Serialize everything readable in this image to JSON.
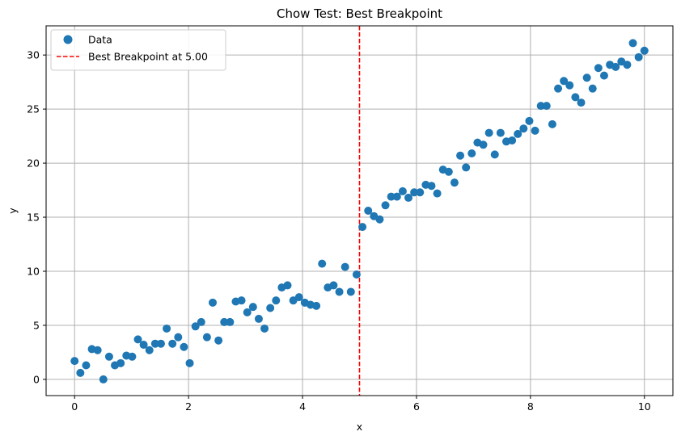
{
  "chart_data": {
    "type": "scatter",
    "title": "Chow Test: Best Breakpoint",
    "xlabel": "x",
    "ylabel": "y",
    "xlim": [
      -0.5,
      10.5
    ],
    "ylim": [
      -1.5,
      32.7
    ],
    "xticks": [
      0,
      2,
      4,
      6,
      8,
      10
    ],
    "yticks": [
      0,
      5,
      10,
      15,
      20,
      25,
      30
    ],
    "grid": true,
    "legend_position": "top-left",
    "series": [
      {
        "name": "Data",
        "color": "#1f77b4",
        "x": [
          0.0,
          0.101,
          0.202,
          0.303,
          0.404,
          0.505,
          0.606,
          0.707,
          0.808,
          0.909,
          1.01,
          1.111,
          1.212,
          1.313,
          1.414,
          1.515,
          1.616,
          1.717,
          1.818,
          1.919,
          2.02,
          2.121,
          2.222,
          2.323,
          2.424,
          2.525,
          2.626,
          2.727,
          2.828,
          2.929,
          3.03,
          3.131,
          3.232,
          3.333,
          3.434,
          3.535,
          3.636,
          3.737,
          3.838,
          3.939,
          4.04,
          4.141,
          4.242,
          4.343,
          4.444,
          4.545,
          4.646,
          4.747,
          4.848,
          4.949,
          5.051,
          5.152,
          5.253,
          5.354,
          5.455,
          5.556,
          5.657,
          5.758,
          5.859,
          5.96,
          6.061,
          6.162,
          6.263,
          6.364,
          6.465,
          6.566,
          6.667,
          6.768,
          6.869,
          6.97,
          7.071,
          7.172,
          7.273,
          7.374,
          7.475,
          7.576,
          7.677,
          7.778,
          7.879,
          7.98,
          8.081,
          8.182,
          8.283,
          8.384,
          8.485,
          8.586,
          8.687,
          8.788,
          8.889,
          8.99,
          9.091,
          9.192,
          9.293,
          9.394,
          9.495,
          9.596,
          9.697,
          9.798,
          9.899,
          10.0
        ],
        "y": [
          1.7,
          0.6,
          1.3,
          2.8,
          2.7,
          0.0,
          2.1,
          1.3,
          1.5,
          2.2,
          2.1,
          3.7,
          3.2,
          2.7,
          3.3,
          3.3,
          4.7,
          3.3,
          3.9,
          3.0,
          1.5,
          4.9,
          5.3,
          3.9,
          7.1,
          3.6,
          5.3,
          5.3,
          7.2,
          7.3,
          6.2,
          6.7,
          5.6,
          4.7,
          6.6,
          7.3,
          8.5,
          8.7,
          7.3,
          7.6,
          7.1,
          6.9,
          6.8,
          10.7,
          8.5,
          8.7,
          8.1,
          10.4,
          8.1,
          9.7,
          14.1,
          15.6,
          15.1,
          14.8,
          16.1,
          16.9,
          16.9,
          17.4,
          16.8,
          17.3,
          17.3,
          18.0,
          17.9,
          17.2,
          19.4,
          19.2,
          18.2,
          20.7,
          19.6,
          20.9,
          21.9,
          21.7,
          22.8,
          20.8,
          22.8,
          22.0,
          22.1,
          22.7,
          23.2,
          23.9,
          23.0,
          25.3,
          25.3,
          23.6,
          26.9,
          27.6,
          27.2,
          26.1,
          25.6,
          27.9,
          26.9,
          28.8,
          28.1,
          29.1,
          28.9,
          29.4,
          29.1,
          31.1,
          29.8,
          30.4
        ]
      }
    ],
    "breakpoint": {
      "name": "Best Breakpoint at 5.00",
      "x": 5.0,
      "color": "#ff0000"
    },
    "colors": {
      "point": "#1f77b4",
      "breakpoint_line": "#ff0000",
      "grid": "#b0b0b0"
    }
  }
}
